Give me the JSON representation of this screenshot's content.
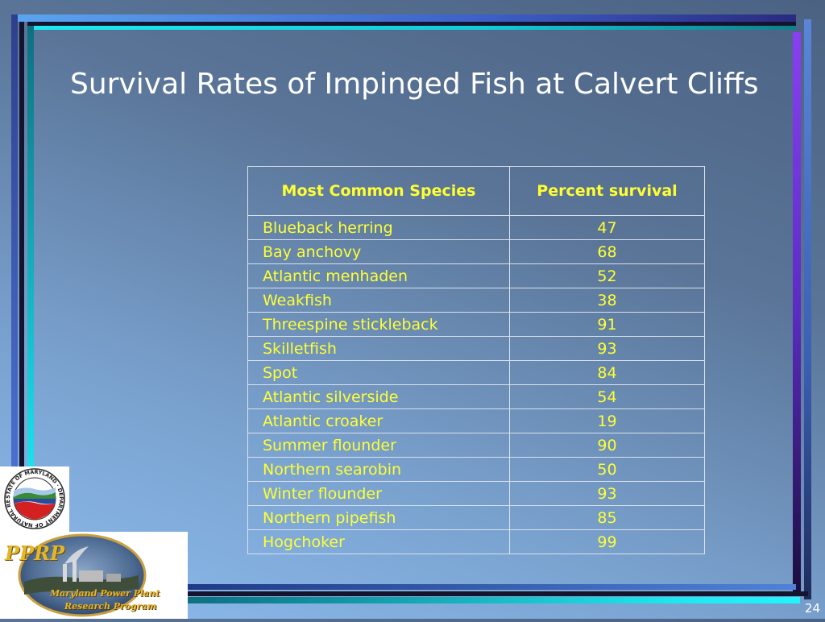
{
  "slide": {
    "title": "Survival Rates of Impinged Fish at Calvert Cliffs",
    "page_number": "24"
  },
  "table": {
    "headers": [
      "Most Common Species",
      "Percent survival"
    ],
    "rows": [
      {
        "species": "Blueback herring",
        "survival": "47"
      },
      {
        "species": "Bay anchovy",
        "survival": "68"
      },
      {
        "species": "Atlantic menhaden",
        "survival": "52"
      },
      {
        "species": "Weakfish",
        "survival": "38"
      },
      {
        "species": "Threespine stickleback",
        "survival": "91"
      },
      {
        "species": "Skilletfish",
        "survival": "93"
      },
      {
        "species": "Spot",
        "survival": "84"
      },
      {
        "species": "Atlantic silverside",
        "survival": "54"
      },
      {
        "species": "Atlantic croaker",
        "survival": "19"
      },
      {
        "species": "Summer flounder",
        "survival": "90"
      },
      {
        "species": "Northern searobin",
        "survival": "50"
      },
      {
        "species": "Winter flounder",
        "survival": "93"
      },
      {
        "species": "Northern pipefish",
        "survival": "85"
      },
      {
        "species": "Hogchoker",
        "survival": "99"
      }
    ]
  },
  "logos": {
    "seal_text": "STATE OF MARYLAND · DEPARTMENT OF NATURAL RESOURCES",
    "pprp_abbr": "PPRP",
    "pprp_line1": "Maryland Power Plant",
    "pprp_line2": "Research Program"
  },
  "colors": {
    "text_yellow": "#ffff33",
    "accent_cyan": "#19e6f0",
    "accent_blue": "#5a86d8",
    "accent_purple": "#8a3ff2",
    "accent_dark": "#1a1236"
  }
}
